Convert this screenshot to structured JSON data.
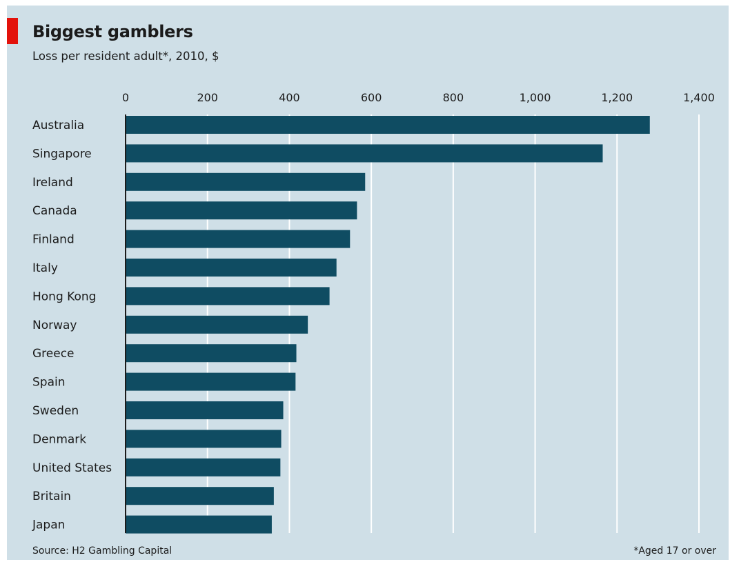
{
  "chart_data": {
    "type": "bar",
    "orientation": "horizontal",
    "title": "Biggest gamblers",
    "subtitle": "Loss per resident adult*, 2010, $",
    "categories": [
      "Australia",
      "Singapore",
      "Ireland",
      "Canada",
      "Finland",
      "Italy",
      "Hong Kong",
      "Norway",
      "Greece",
      "Spain",
      "Sweden",
      "Denmark",
      "United States",
      "Britain",
      "Japan"
    ],
    "values": [
      1280,
      1165,
      585,
      565,
      548,
      515,
      498,
      445,
      417,
      415,
      385,
      380,
      378,
      362,
      357
    ],
    "xlim": [
      0,
      1400
    ],
    "ticks": [
      0,
      200,
      400,
      600,
      800,
      1000,
      1200,
      1400
    ],
    "tick_labels": [
      "0",
      "200",
      "400",
      "600",
      "800",
      "1,000",
      "1,200",
      "1,400"
    ],
    "grid": true,
    "source": "Source: H2 Gambling Capital",
    "footnote": "*Aged 17 or over",
    "colors": {
      "bar": "#0f4c62",
      "background": "#cfdfe7",
      "accent": "#e3120b",
      "grid": "#ffffff"
    }
  }
}
